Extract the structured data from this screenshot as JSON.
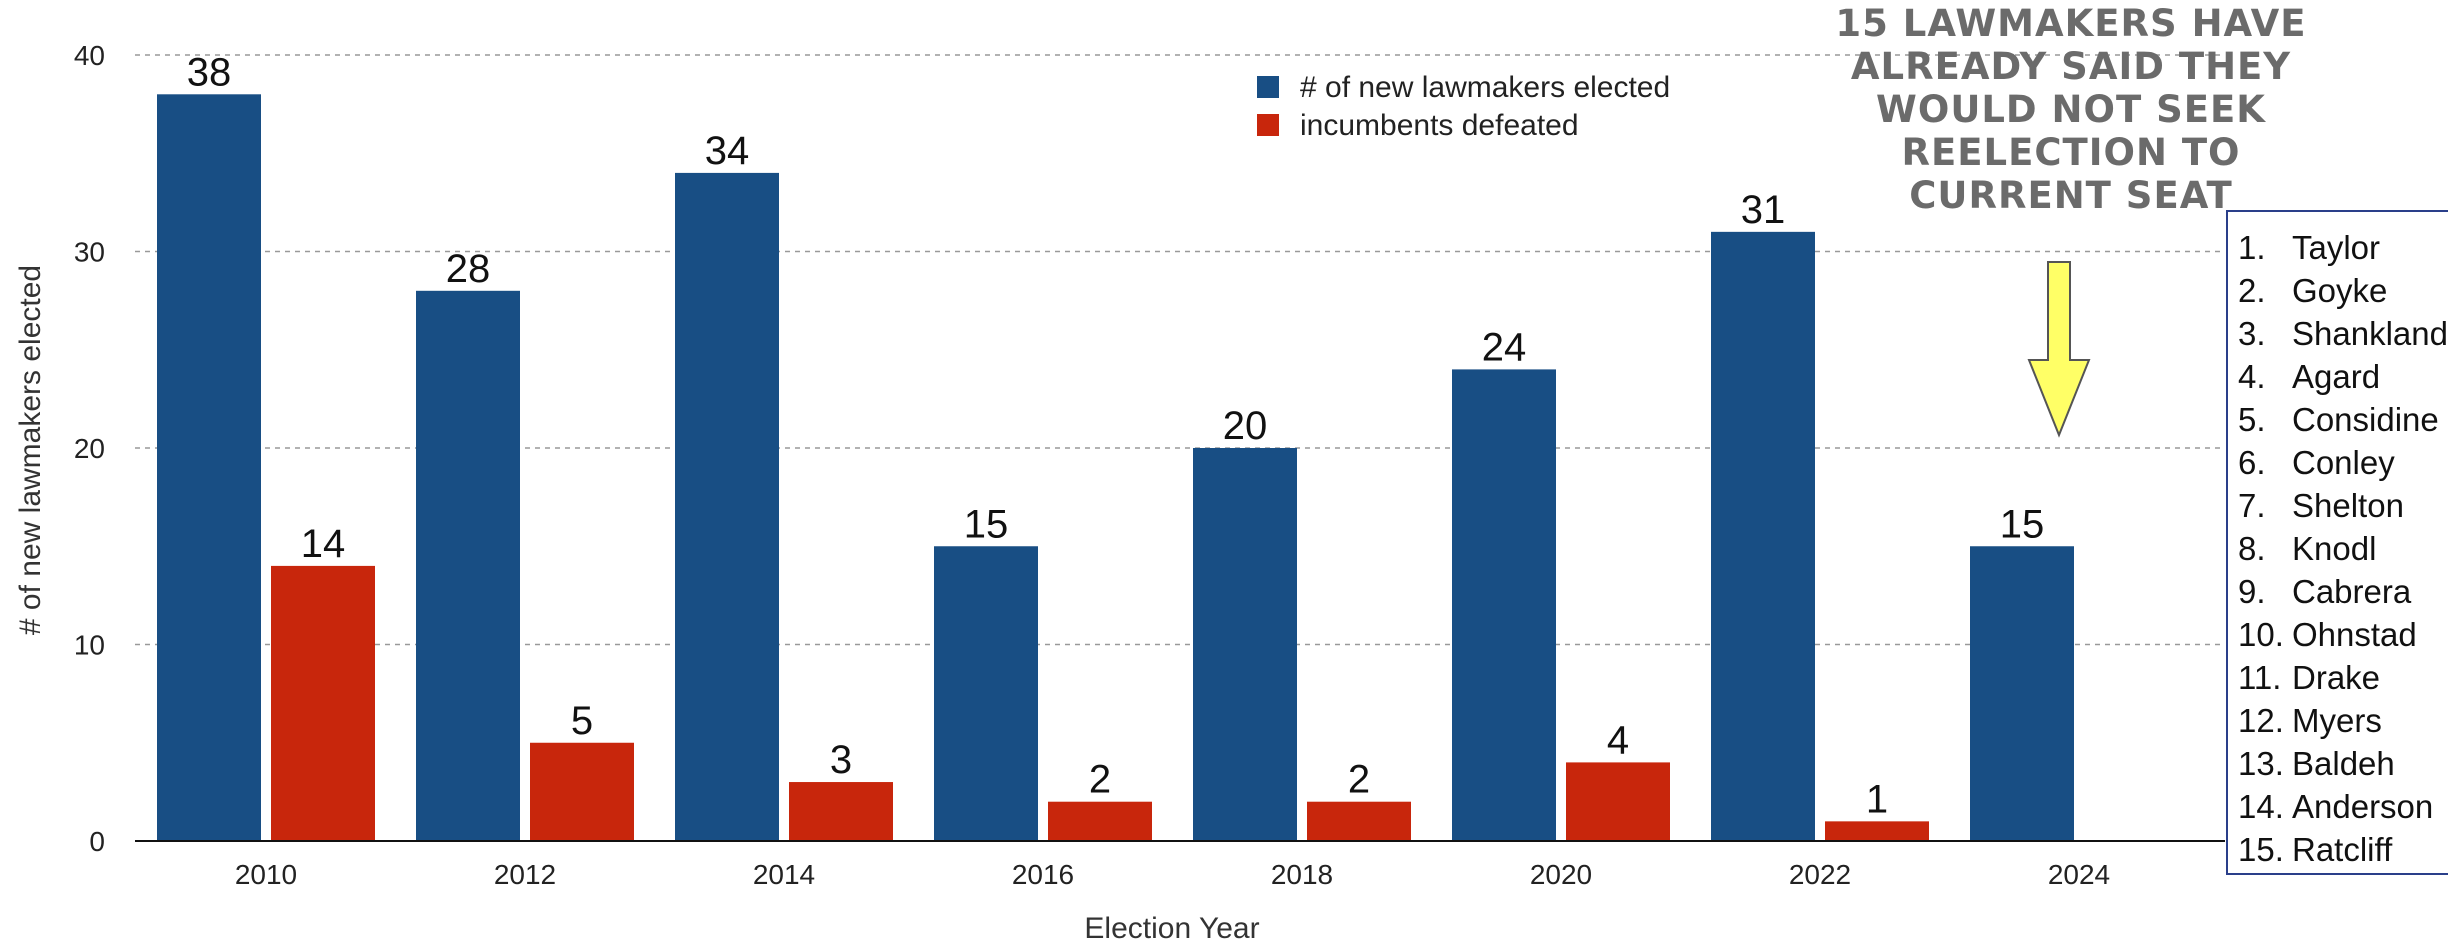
{
  "chart_data": {
    "type": "bar",
    "categories": [
      "2010",
      "2012",
      "2014",
      "2016",
      "2018",
      "2020",
      "2022",
      "2024"
    ],
    "series": [
      {
        "name": "# of new lawmakers elected",
        "color": "#184e84",
        "values": [
          38,
          28,
          34,
          15,
          20,
          24,
          31,
          15
        ]
      },
      {
        "name": "incumbents defeated",
        "color": "#c8260c",
        "values": [
          14,
          5,
          3,
          2,
          2,
          4,
          1,
          null
        ]
      }
    ],
    "xlabel": "Election Year",
    "ylabel": "# of new lawmakers elected",
    "ylim": [
      0,
      40
    ],
    "yticks": [
      0,
      10,
      20,
      30,
      40
    ],
    "grid": true,
    "legend_position": "top-center",
    "annotation": {
      "lines": [
        "15 LAWMAKERS HAVE",
        "ALREADY SAID THEY",
        "WOULD NOT SEEK",
        "REELECTION TO",
        "CURRENT SEAT"
      ],
      "arrow_color": "#ffff66",
      "arrow_target": "2024"
    }
  },
  "names": [
    {
      "num": "1.",
      "name": "Taylor"
    },
    {
      "num": "2.",
      "name": "Goyke"
    },
    {
      "num": "3.",
      "name": "Shankland"
    },
    {
      "num": "4.",
      "name": "Agard"
    },
    {
      "num": "5.",
      "name": "Considine"
    },
    {
      "num": "6.",
      "name": "Conley"
    },
    {
      "num": "7.",
      "name": "Shelton"
    },
    {
      "num": "8.",
      "name": "Knodl"
    },
    {
      "num": "9.",
      "name": "Cabrera"
    },
    {
      "num": "10.",
      "name": "Ohnstad"
    },
    {
      "num": "11.",
      "name": "Drake"
    },
    {
      "num": "12.",
      "name": "Myers"
    },
    {
      "num": "13.",
      "name": "Baldeh"
    },
    {
      "num": "14.",
      "name": "Anderson"
    },
    {
      "num": "15.",
      "name": "Ratcliff"
    }
  ]
}
